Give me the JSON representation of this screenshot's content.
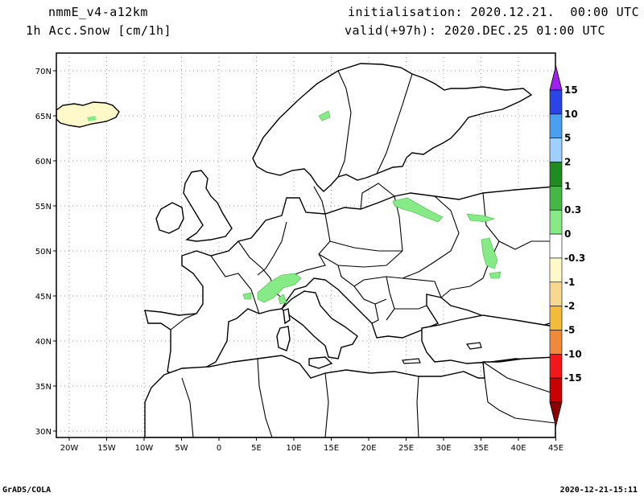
{
  "header": {
    "model": "nmmE_v4-a12km",
    "field": "1h Acc.Snow [cm/1h]",
    "init": "initialisation: 2020.12.21.  00:00 UTC",
    "valid": "valid(+97h): 2020.DEC.25 01:00 UTC"
  },
  "footer": {
    "left": "GrADS/COLA",
    "right": "2020-12-21-15:11"
  },
  "map": {
    "lon_ticks": [
      "20W",
      "15W",
      "10W",
      "5W",
      "0",
      "5E",
      "10E",
      "15E",
      "20E",
      "25E",
      "30E",
      "35E",
      "40E",
      "45E"
    ],
    "lat_ticks": [
      "70N",
      "65N",
      "60N",
      "55N",
      "50N",
      "45N",
      "40N",
      "35N",
      "30N"
    ],
    "lon_range": [
      -22,
      45
    ],
    "lat_range": [
      29,
      72
    ]
  },
  "colorbar": {
    "labels": [
      "15",
      "10",
      "5",
      "2",
      "1",
      "0.3",
      "0",
      "-0.3",
      "-1",
      "-2",
      "-5",
      "-10",
      "-15"
    ],
    "colors": [
      "#a020f0",
      "#2a44e6",
      "#4aa0f0",
      "#9ed0ff",
      "#1e8c1e",
      "#44b844",
      "#86ea86",
      "#ffffff",
      "#fff8c8",
      "#f8d890",
      "#f2bb3a",
      "#ee8a3a",
      "#f01818",
      "#c80000",
      "#8c0000"
    ]
  }
}
